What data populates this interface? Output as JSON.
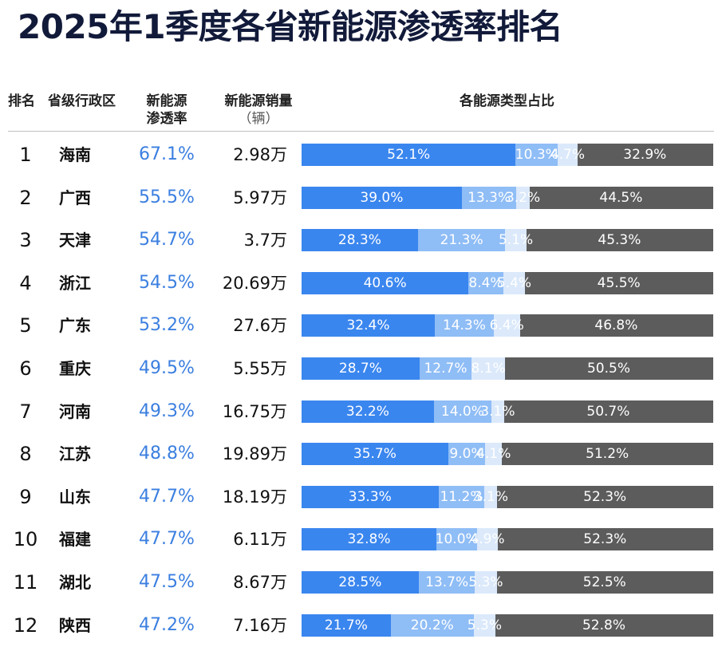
{
  "title": "2025年1季度各省新能源渗透率排名",
  "headers": {
    "rank": "排名",
    "province": "省级行政区",
    "penetration_line1": "新能源",
    "penetration_line2": "渗透率",
    "sales_line1": "新能源销量",
    "sales_line2": "（辆）",
    "share": "各能源类型占比"
  },
  "colors": {
    "segment_1": "#3a86ef",
    "segment_2": "#8fbdf6",
    "segment_3": "#dbe9fb",
    "segment_4": "#5c5c5c",
    "penetration_text": "#3b7fe0",
    "title": "#121a3a"
  },
  "chart_data": {
    "type": "table",
    "columns": [
      "排名",
      "省级行政区",
      "新能源渗透率",
      "新能源销量（辆）",
      "各能源类型占比"
    ],
    "rows": [
      {
        "rank": "1",
        "province": "海南",
        "penetration": "67.1%",
        "sales": "2.98万",
        "shares": [
          52.1,
          10.3,
          4.7,
          32.9
        ],
        "share_labels": [
          "52.1%",
          "10.3%",
          "4.7%",
          "32.9%"
        ]
      },
      {
        "rank": "2",
        "province": "广西",
        "penetration": "55.5%",
        "sales": "5.97万",
        "shares": [
          39.0,
          13.3,
          3.2,
          44.5
        ],
        "share_labels": [
          "39.0%",
          "13.3%",
          "3.2%",
          "44.5%"
        ]
      },
      {
        "rank": "3",
        "province": "天津",
        "penetration": "54.7%",
        "sales": "3.7万",
        "shares": [
          28.3,
          21.3,
          5.1,
          45.3
        ],
        "share_labels": [
          "28.3%",
          "21.3%",
          "5.1%",
          "45.3%"
        ]
      },
      {
        "rank": "4",
        "province": "浙江",
        "penetration": "54.5%",
        "sales": "20.69万",
        "shares": [
          40.6,
          8.4,
          5.4,
          45.5
        ],
        "share_labels": [
          "40.6%",
          "8.4%",
          "5.4%",
          "45.5%"
        ]
      },
      {
        "rank": "5",
        "province": "广东",
        "penetration": "53.2%",
        "sales": "27.6万",
        "shares": [
          32.4,
          14.3,
          6.4,
          46.8
        ],
        "share_labels": [
          "32.4%",
          "14.3%",
          "6.4%",
          "46.8%"
        ]
      },
      {
        "rank": "6",
        "province": "重庆",
        "penetration": "49.5%",
        "sales": "5.55万",
        "shares": [
          28.7,
          12.7,
          8.1,
          50.5
        ],
        "share_labels": [
          "28.7%",
          "12.7%",
          "8.1%",
          "50.5%"
        ]
      },
      {
        "rank": "7",
        "province": "河南",
        "penetration": "49.3%",
        "sales": "16.75万",
        "shares": [
          32.2,
          14.0,
          3.1,
          50.7
        ],
        "share_labels": [
          "32.2%",
          "14.0%",
          "3.1%",
          "50.7%"
        ]
      },
      {
        "rank": "8",
        "province": "江苏",
        "penetration": "48.8%",
        "sales": "19.89万",
        "shares": [
          35.7,
          9.0,
          4.1,
          51.2
        ],
        "share_labels": [
          "35.7%",
          "9.0%",
          "4.1%",
          "51.2%"
        ]
      },
      {
        "rank": "9",
        "province": "山东",
        "penetration": "47.7%",
        "sales": "18.19万",
        "shares": [
          33.3,
          11.2,
          3.1,
          52.3
        ],
        "share_labels": [
          "33.3%",
          "11.2%",
          "3.1%",
          "52.3%"
        ]
      },
      {
        "rank": "10",
        "province": "福建",
        "penetration": "47.7%",
        "sales": "6.11万",
        "shares": [
          32.8,
          10.0,
          4.9,
          52.3
        ],
        "share_labels": [
          "32.8%",
          "10.0%",
          "4.9%",
          "52.3%"
        ]
      },
      {
        "rank": "11",
        "province": "湖北",
        "penetration": "47.5%",
        "sales": "8.67万",
        "shares": [
          28.5,
          13.7,
          5.3,
          52.5
        ],
        "share_labels": [
          "28.5%",
          "13.7%",
          "5.3%",
          "52.5%"
        ]
      },
      {
        "rank": "12",
        "province": "陕西",
        "penetration": "47.2%",
        "sales": "7.16万",
        "shares": [
          21.7,
          20.2,
          5.3,
          52.8
        ],
        "share_labels": [
          "21.7%",
          "20.2%",
          "5.3%",
          "52.8%"
        ]
      }
    ]
  }
}
